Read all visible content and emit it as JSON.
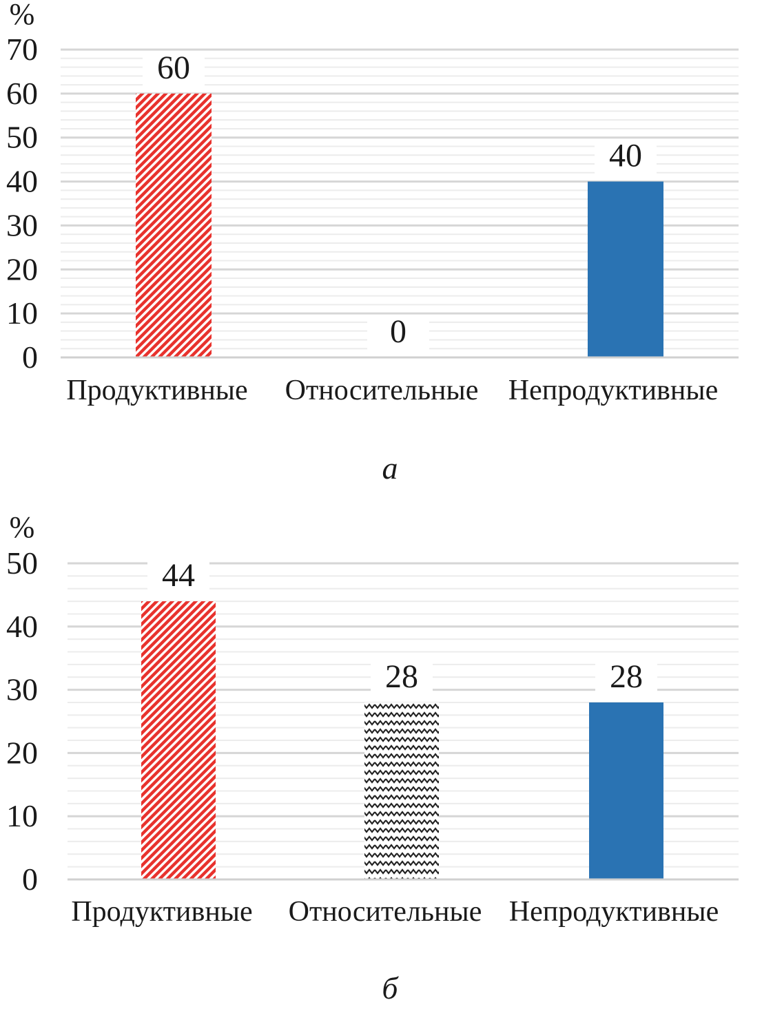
{
  "chart_data": [
    {
      "type": "bar",
      "panel_label": "а",
      "ylabel": "%",
      "categories": [
        "Продуктивные",
        "Относительные",
        "Непродуктивные"
      ],
      "values": [
        60,
        0,
        40
      ],
      "data_labels": [
        "60",
        "0",
        "40"
      ],
      "ylim": [
        0,
        70
      ],
      "yticks": [
        0,
        10,
        20,
        30,
        40,
        50,
        60,
        70
      ],
      "grid": true,
      "patterns": [
        "red-diagonal-hatch",
        "black-wave",
        "solid-blue"
      ]
    },
    {
      "type": "bar",
      "panel_label": "б",
      "ylabel": "%",
      "categories": [
        "Продуктивные",
        "Относительные",
        "Непродуктивные"
      ],
      "values": [
        44,
        28,
        28
      ],
      "data_labels": [
        "44",
        "28",
        "28"
      ],
      "ylim": [
        0,
        50
      ],
      "yticks": [
        0,
        10,
        20,
        30,
        40,
        50
      ],
      "grid": true,
      "patterns": [
        "red-diagonal-hatch",
        "black-wave",
        "solid-blue"
      ]
    }
  ],
  "colors": {
    "red": "#e8322d",
    "blue": "#2a73b3",
    "wave": "#222222",
    "grid": "#d9d9d9"
  }
}
